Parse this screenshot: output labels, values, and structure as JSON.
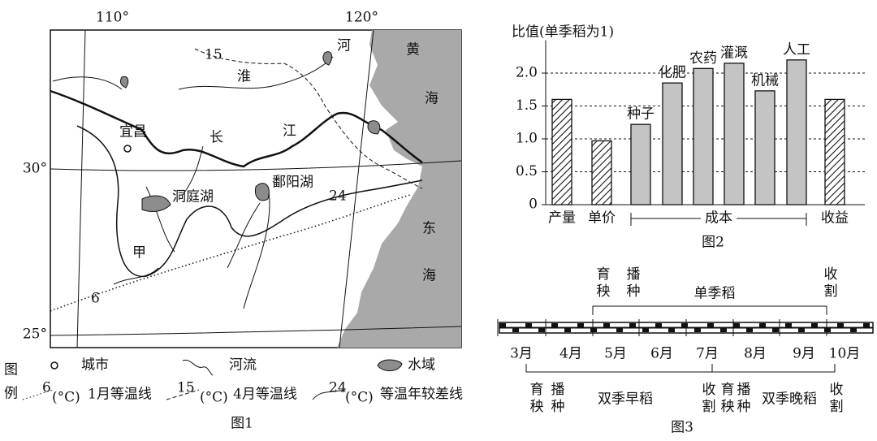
{
  "map": {
    "caption": "图1",
    "meridians": [
      "110°",
      "120°"
    ],
    "parallels": [
      "30°",
      "25°"
    ],
    "places": {
      "huai": "淮",
      "he": "河",
      "chang": "长",
      "jiang": "江",
      "huang": "黄",
      "hai1": "海",
      "dong": "东",
      "hai2": "海",
      "yichang": "宜昌",
      "dongting": "洞庭湖",
      "poyang": "鄱阳湖",
      "jia": "甲"
    },
    "isolines": {
      "jan": "6",
      "apr": "15",
      "range": "24"
    },
    "legend": {
      "title1": "图",
      "title2": "例",
      "city": "城市",
      "river": "河流",
      "water": "水域",
      "jan_num": "6",
      "jan_unit": "(°C)",
      "jan": "1月等温线",
      "apr_num": "15",
      "apr_unit": "(°C)",
      "apr": "4月等温线",
      "range_num": "24",
      "range_unit": "(°C)",
      "range": "等温年较差线"
    }
  },
  "chart_data": {
    "type": "bar",
    "ylabel": "比值(单季稻为1)",
    "caption": "图2",
    "categories": [
      "产量",
      "单价",
      "种子",
      "化肥",
      "农药",
      "灌溉",
      "机械",
      "人工",
      "收益"
    ],
    "values": [
      1.6,
      0.97,
      1.22,
      1.85,
      2.07,
      2.15,
      1.73,
      2.2,
      1.6
    ],
    "fills": [
      "hatch",
      "hatch",
      "#c4c4c4",
      "#c4c4c4",
      "#c4c4c4",
      "#c4c4c4",
      "#c4c4c4",
      "#c4c4c4",
      "hatch"
    ],
    "label_above": [
      false,
      false,
      true,
      true,
      true,
      true,
      true,
      true,
      false
    ],
    "group_label": "成本",
    "ylim": [
      0,
      2.5
    ],
    "yticks": [
      0,
      0.5,
      {
        "value": 1,
        "label": "1.0"
      },
      1.5,
      {
        "value": 2,
        "label": "2.0"
      }
    ],
    "grid": true
  },
  "timeline": {
    "caption": "图3",
    "months": [
      "3月",
      "4月",
      "5月",
      "6月",
      "7月",
      "8月",
      "9月",
      "10月"
    ],
    "single": {
      "seedling": "育秧",
      "sowing": "播种",
      "name": "单季稻",
      "harvest": "收割"
    },
    "early": {
      "seedling": "育秧",
      "sowing": "播种",
      "name": "双季早稻",
      "harvest": "收割"
    },
    "late": {
      "seedling": "育秧",
      "sowing": "播种",
      "name": "双季晚稻",
      "harvest": "收割"
    }
  }
}
